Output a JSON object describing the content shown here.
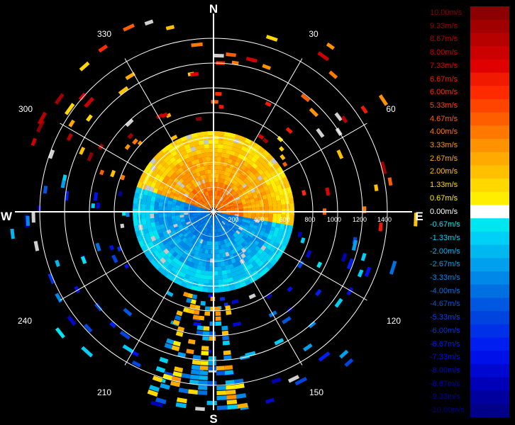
{
  "compass": {
    "north": "N",
    "south": "S",
    "east": "E",
    "west": "W"
  },
  "bearings": [
    "30",
    "60",
    "120",
    "150",
    "210",
    "240",
    "300",
    "330"
  ],
  "range_labels": [
    "200",
    "400",
    "600",
    "800",
    "1000",
    "1200",
    "1400"
  ],
  "legend": [
    {
      "label": "10.00m/s",
      "color": "#8b0000"
    },
    {
      "label": "9.33m/s",
      "color": "#a00000"
    },
    {
      "label": "8.67m/s",
      "color": "#b70000"
    },
    {
      "label": "8.00m/s",
      "color": "#cc0000"
    },
    {
      "label": "7.33m/s",
      "color": "#e00000"
    },
    {
      "label": "6.67m/s",
      "color": "#f01a00"
    },
    {
      "label": "6.00m/s",
      "color": "#ff2a00"
    },
    {
      "label": "5.33m/s",
      "color": "#ff4400"
    },
    {
      "label": "4.67m/s",
      "color": "#ff5e00"
    },
    {
      "label": "4.00m/s",
      "color": "#ff7800"
    },
    {
      "label": "3.33m/s",
      "color": "#ff9200"
    },
    {
      "label": "2.67m/s",
      "color": "#ffaa00"
    },
    {
      "label": "2.00m/s",
      "color": "#ffc000"
    },
    {
      "label": "1.33m/s",
      "color": "#ffd800"
    },
    {
      "label": "0.67m/s",
      "color": "#ffee00"
    },
    {
      "label": "0.00m/s",
      "color": "#ffffff"
    },
    {
      "label": "-0.67m/s",
      "color": "#00e6f0"
    },
    {
      "label": "-1.33m/s",
      "color": "#00d0f5"
    },
    {
      "label": "-2.00m/s",
      "color": "#00b8f0"
    },
    {
      "label": "-2.67m/s",
      "color": "#00a0ee"
    },
    {
      "label": "-3.33m/s",
      "color": "#0088e8"
    },
    {
      "label": "-4.00m/s",
      "color": "#0070e0"
    },
    {
      "label": "-4.67m/s",
      "color": "#0058e0"
    },
    {
      "label": "-5.33m/s",
      "color": "#0044e0"
    },
    {
      "label": "-6.00m/s",
      "color": "#0030e8"
    },
    {
      "label": "-6.67m/s",
      "color": "#001ef0"
    },
    {
      "label": "-7.33m/s",
      "color": "#0010e8"
    },
    {
      "label": "-8.00m/s",
      "color": "#0008d0"
    },
    {
      "label": "-8.67m/s",
      "color": "#0000b8"
    },
    {
      "label": "-9.33m/s",
      "color": "#00009e"
    },
    {
      "label": "-10.00m/s",
      "color": "#000088"
    }
  ]
}
